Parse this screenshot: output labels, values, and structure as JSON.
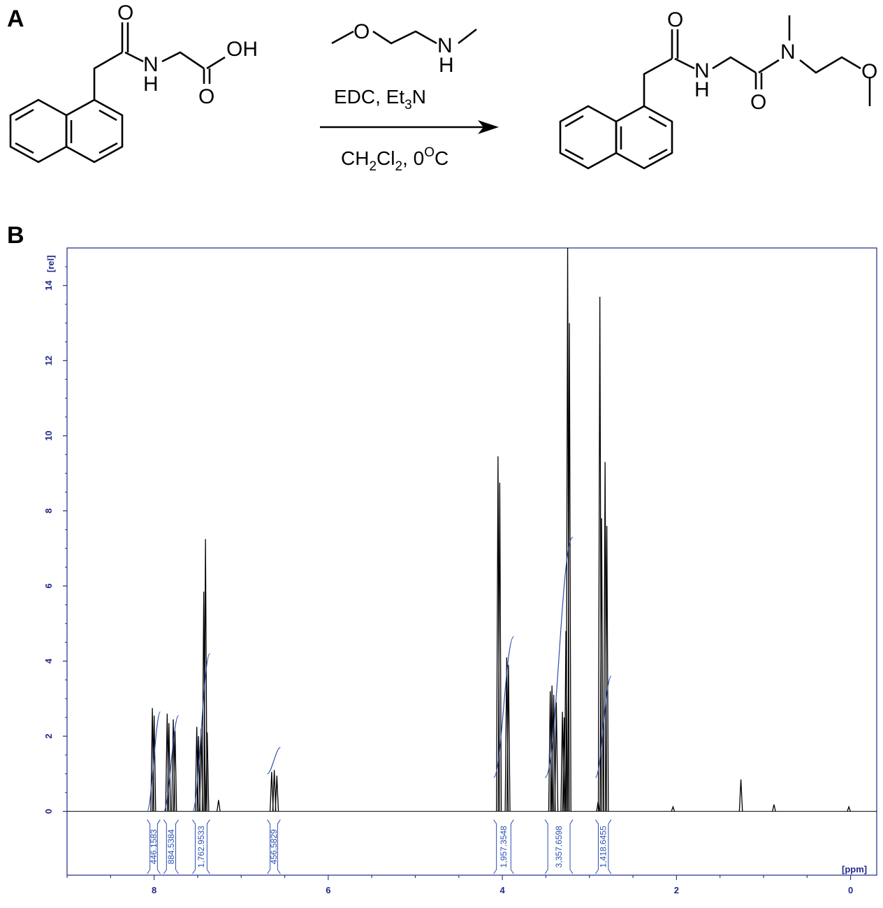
{
  "panels": {
    "a": "A",
    "b": "B"
  },
  "reaction": {
    "reactant_labels": {
      "oh": "OH",
      "nh": "N",
      "h": "H",
      "o1": "O",
      "o2": "O"
    },
    "reagent_labels": {
      "o": "O",
      "n": "N",
      "h": "H"
    },
    "reagents_line1": {
      "main": "EDC, Et",
      "sub": "3",
      "tail": "N"
    },
    "conditions_line2": {
      "a": "CH",
      "sub1": "2",
      "b": "Cl",
      "sub2": "2",
      "c": ", 0",
      "sup": "O",
      "d": "C"
    },
    "product_labels": {
      "o1": "O",
      "nh": "N",
      "h": "H",
      "o2": "O",
      "n": "N",
      "o3": "O"
    }
  },
  "chart_data": {
    "type": "line",
    "title": "",
    "xlabel": "[ppm]",
    "ylabel": "[rel]",
    "xlim": [
      9.0,
      -0.3
    ],
    "ylim": [
      -1.7,
      15.0
    ],
    "x_reversed": true,
    "x_ticks": [
      8,
      6,
      4,
      2,
      0
    ],
    "y_ticks": [
      0,
      2,
      4,
      6,
      8,
      10,
      12,
      14
    ],
    "grid": false,
    "colors": {
      "frame": "#1f2a8a",
      "spectrum": "#000000",
      "integral": "#2a4fb0"
    },
    "peaks": [
      {
        "shift": 8.02,
        "height": 2.75
      },
      {
        "shift": 8.0,
        "height": 2.55
      },
      {
        "shift": 7.85,
        "height": 2.6
      },
      {
        "shift": 7.83,
        "height": 2.35
      },
      {
        "shift": 7.78,
        "height": 2.45
      },
      {
        "shift": 7.76,
        "height": 2.15
      },
      {
        "shift": 7.51,
        "height": 2.25
      },
      {
        "shift": 7.49,
        "height": 2.0
      },
      {
        "shift": 7.46,
        "height": 2.2
      },
      {
        "shift": 7.43,
        "height": 5.85
      },
      {
        "shift": 7.41,
        "height": 7.25
      },
      {
        "shift": 7.39,
        "height": 2.1
      },
      {
        "shift": 7.26,
        "height": 0.3
      },
      {
        "shift": 6.65,
        "height": 1.05
      },
      {
        "shift": 6.62,
        "height": 1.1
      },
      {
        "shift": 6.59,
        "height": 0.95
      },
      {
        "shift": 4.05,
        "height": 9.45
      },
      {
        "shift": 4.03,
        "height": 8.75
      },
      {
        "shift": 3.95,
        "height": 4.1
      },
      {
        "shift": 3.93,
        "height": 3.9
      },
      {
        "shift": 3.45,
        "height": 3.2
      },
      {
        "shift": 3.43,
        "height": 3.35
      },
      {
        "shift": 3.41,
        "height": 3.1
      },
      {
        "shift": 3.38,
        "height": 2.9
      },
      {
        "shift": 3.31,
        "height": 2.65
      },
      {
        "shift": 3.29,
        "height": 2.5
      },
      {
        "shift": 3.27,
        "height": 4.8
      },
      {
        "shift": 3.25,
        "height": 15.0
      },
      {
        "shift": 3.23,
        "height": 13.0
      },
      {
        "shift": 2.9,
        "height": 0.25
      },
      {
        "shift": 2.88,
        "height": 13.7
      },
      {
        "shift": 2.86,
        "height": 7.8
      },
      {
        "shift": 2.82,
        "height": 9.3
      },
      {
        "shift": 2.8,
        "height": 7.6
      },
      {
        "shift": 2.04,
        "height": 0.12
      },
      {
        "shift": 1.26,
        "height": 0.85
      },
      {
        "shift": 0.88,
        "height": 0.18
      },
      {
        "shift": 0.02,
        "height": 0.12
      }
    ],
    "integrals": [
      {
        "label": "446.1583",
        "from": 8.08,
        "to": 7.93,
        "start": 0.0,
        "end": 2.65
      },
      {
        "label": "884.5384",
        "from": 7.89,
        "to": 7.72,
        "start": 0.0,
        "end": 2.55
      },
      {
        "label": "1,762.9533",
        "from": 7.56,
        "to": 7.36,
        "start": 0.0,
        "end": 4.2
      },
      {
        "label": "456.5829",
        "from": 6.7,
        "to": 6.55,
        "start": 1.0,
        "end": 1.7
      },
      {
        "label": "1,957.3548",
        "from": 4.1,
        "to": 3.87,
        "start": 0.9,
        "end": 4.65
      },
      {
        "label": "3,357.6598",
        "from": 3.51,
        "to": 3.19,
        "start": 0.9,
        "end": 7.3
      },
      {
        "label": "1,418.6455",
        "from": 2.93,
        "to": 2.75,
        "start": 0.9,
        "end": 3.6
      }
    ]
  }
}
